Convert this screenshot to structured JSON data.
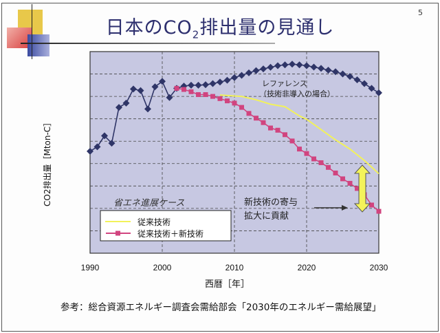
{
  "page_number": "5",
  "title": {
    "before": "日本のCO",
    "sub": "2",
    "after": "排出量の見通し"
  },
  "footer": "参考：総合資源エネルギー調査会需給部会「2030年のエネルギー需給展望」",
  "colors": {
    "reference": "#2f3567",
    "new_tech": "#d1447f",
    "conventional": "#f2f25a",
    "plot_bg": "#c7c8e2",
    "title": "#2d2f6e"
  },
  "chart_data": {
    "type": "line",
    "title": "日本のCO2排出量の見通し",
    "xlabel": "西暦［年］",
    "ylabel": "CO2排出量［Mton-C］",
    "xlim": [
      1990,
      2030
    ],
    "xticks": [
      "1990",
      "2000",
      "2010",
      "2020",
      "2030"
    ],
    "ylim": [
      0,
      9
    ],
    "y_tick_labels_shown": false,
    "grid": true,
    "case_label": "省エネ進展ケース",
    "annotations": {
      "reference_line1": "レファレンス",
      "reference_line2": "（技術非導入の場合）",
      "contribution_line1": "新技術の寄与",
      "contribution_line2": "拡大に貢献"
    },
    "legend": {
      "placement": "bottom-left",
      "entries": [
        "従来技術",
        "従来技術＋新技術"
      ]
    },
    "series": [
      {
        "name": "レファレンス",
        "marker": "diamond",
        "x": [
          1990,
          1991,
          1992,
          1993,
          1994,
          1995,
          1996,
          1997,
          1998,
          1999,
          2000,
          2001,
          2002,
          2003,
          2004,
          2005,
          2006,
          2007,
          2008,
          2009,
          2010,
          2011,
          2012,
          2013,
          2014,
          2015,
          2016,
          2017,
          2018,
          2019,
          2020,
          2021,
          2022,
          2023,
          2024,
          2025,
          2026,
          2027,
          2028,
          2029,
          2030
        ],
        "y": [
          4.55,
          4.75,
          5.24,
          4.91,
          6.51,
          6.7,
          7.33,
          7.26,
          6.44,
          7.43,
          7.67,
          6.95,
          7.36,
          7.46,
          7.5,
          7.5,
          7.52,
          7.57,
          7.64,
          7.72,
          7.84,
          7.94,
          8.05,
          8.15,
          8.23,
          8.3,
          8.37,
          8.41,
          8.44,
          8.41,
          8.37,
          8.31,
          8.25,
          8.17,
          8.1,
          8.0,
          7.89,
          7.74,
          7.57,
          7.36,
          7.16
        ]
      },
      {
        "name": "従来技術",
        "marker": "none",
        "x": [
          2008,
          2011,
          2013,
          2015,
          2017,
          2019,
          2020,
          2022,
          2024,
          2026,
          2028,
          2030
        ],
        "y": [
          7.06,
          7.0,
          6.85,
          6.65,
          6.54,
          6.13,
          5.98,
          5.52,
          5.06,
          4.65,
          4.14,
          3.55
        ]
      },
      {
        "name": "従来技術＋新技術",
        "marker": "square",
        "x": [
          2002,
          2003,
          2004,
          2005,
          2006,
          2007,
          2008,
          2009,
          2010,
          2011,
          2012,
          2013,
          2014,
          2015,
          2016,
          2017,
          2018,
          2019,
          2020,
          2021,
          2022,
          2023,
          2024,
          2025,
          2026,
          2027,
          2028,
          2029,
          2030
        ],
        "y": [
          7.36,
          7.31,
          7.21,
          7.08,
          7.08,
          7.0,
          6.9,
          6.8,
          6.7,
          6.51,
          6.24,
          6.03,
          5.83,
          5.59,
          5.49,
          5.29,
          5.01,
          4.65,
          4.45,
          4.21,
          4.04,
          3.83,
          3.58,
          3.32,
          3.12,
          2.89,
          2.61,
          2.15,
          1.87
        ]
      }
    ]
  }
}
